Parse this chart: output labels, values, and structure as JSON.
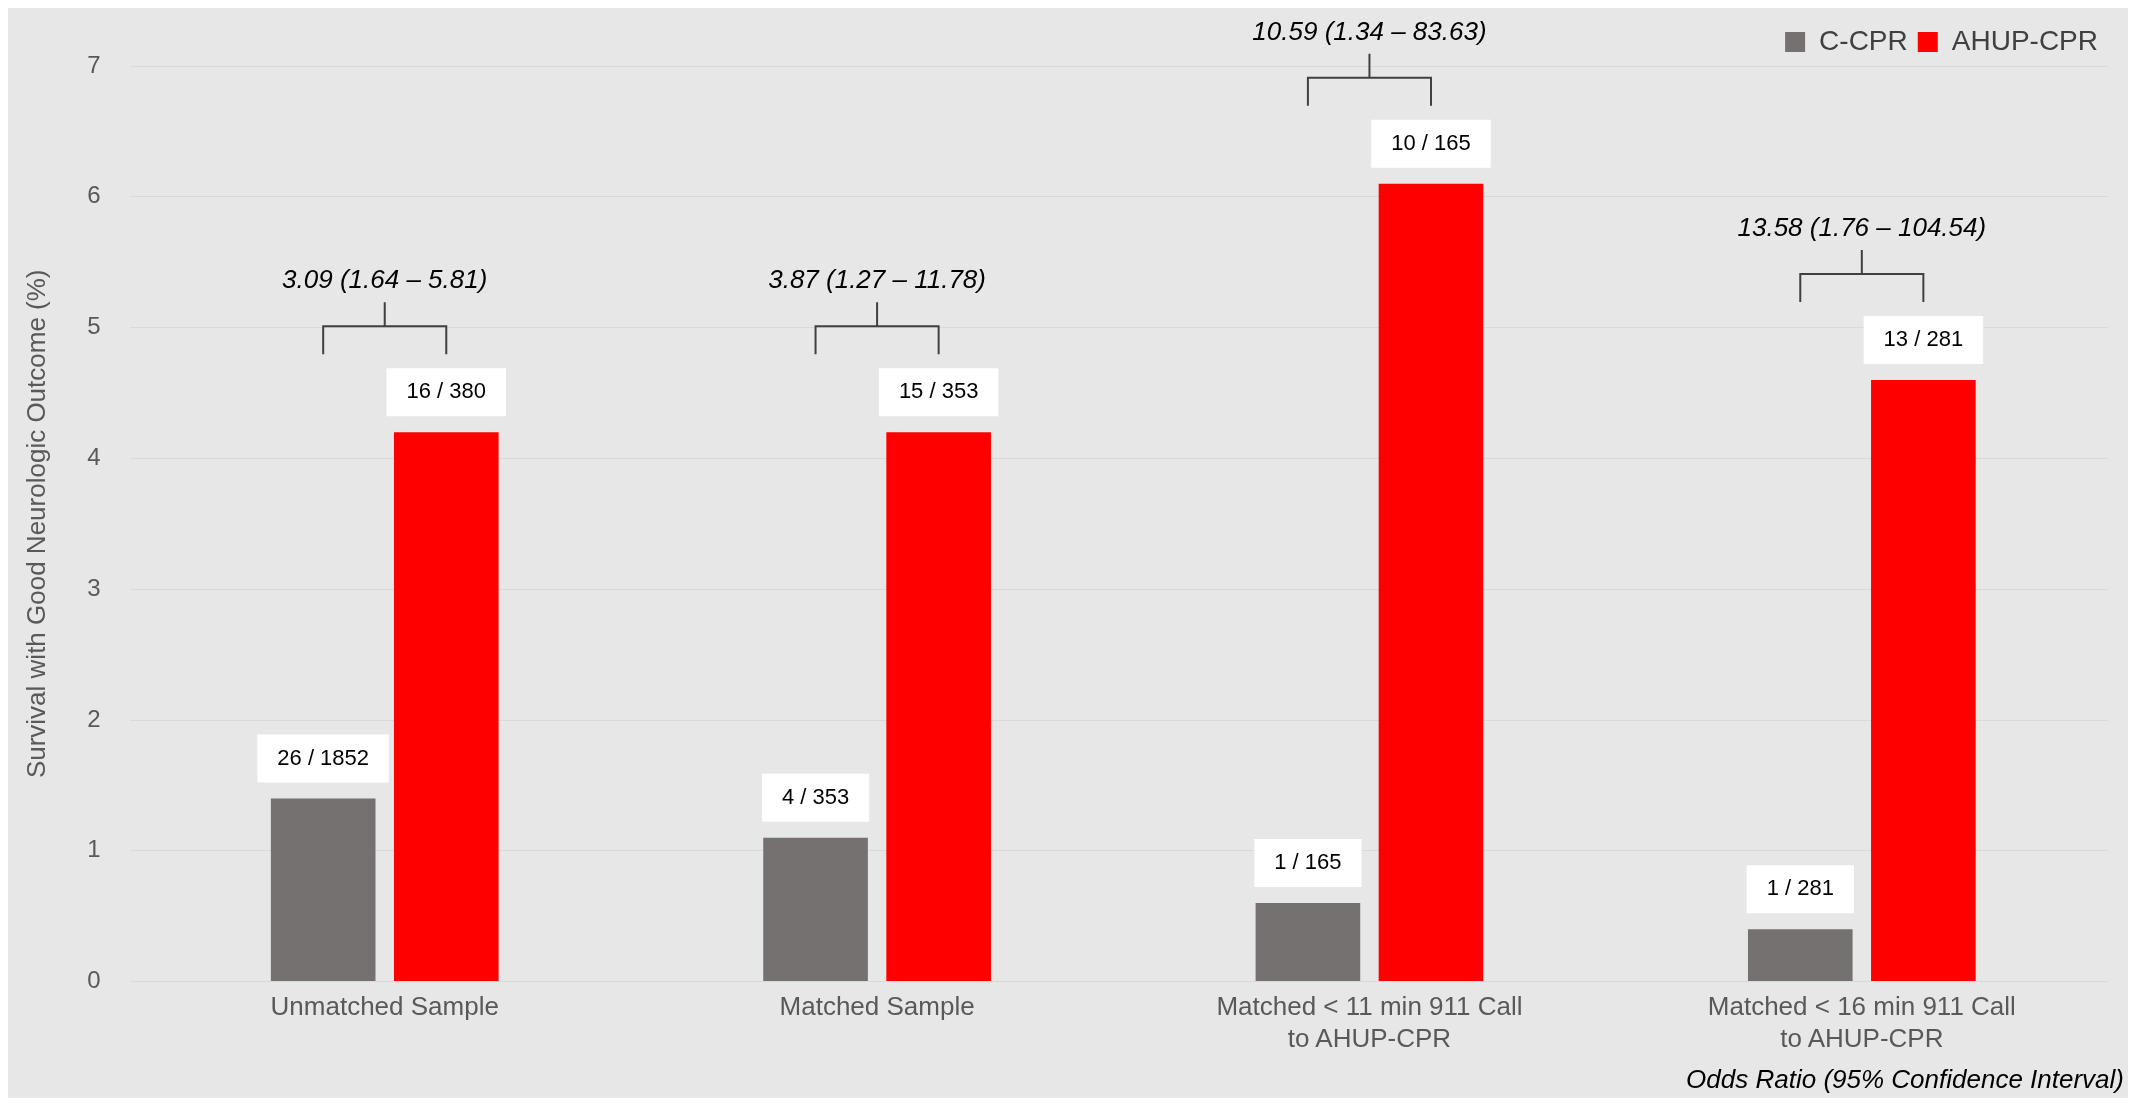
{
  "chart_data": {
    "type": "bar",
    "ylabel": "Survival with Good Neurologic Outcome (%)",
    "categories": [
      "Unmatched Sample",
      "Matched Sample",
      "Matched < 11 min 911 Call to AHUP-CPR",
      "Matched < 16 min 911 Call to AHUP-CPR"
    ],
    "series": [
      {
        "name": "C-CPR",
        "color": "#767171",
        "values": [
          1.4,
          1.1,
          0.6,
          0.4
        ]
      },
      {
        "name": "AHUP-CPR",
        "color": "#ff0000",
        "values": [
          4.2,
          4.2,
          6.1,
          4.6
        ]
      }
    ],
    "ylim": [
      0,
      7
    ],
    "yticks": [
      0,
      1,
      2,
      3,
      4,
      5,
      6,
      7
    ],
    "grid": "y",
    "legend": "top right",
    "annotations": [
      "26 / 1852",
      "4 / 353",
      "1 / 165",
      "1 / 281",
      "16 / 380",
      "15 / 353",
      "10 / 165",
      "13 / 281",
      "3.09 (1.64 – 5.81)",
      "3.87 (1.27 – 11.78)",
      "10.59 (1.34 – 83.63)",
      "13.58 (1.76 – 104.54)",
      "Odds Ratio (95% Confidence Interval)"
    ]
  }
}
